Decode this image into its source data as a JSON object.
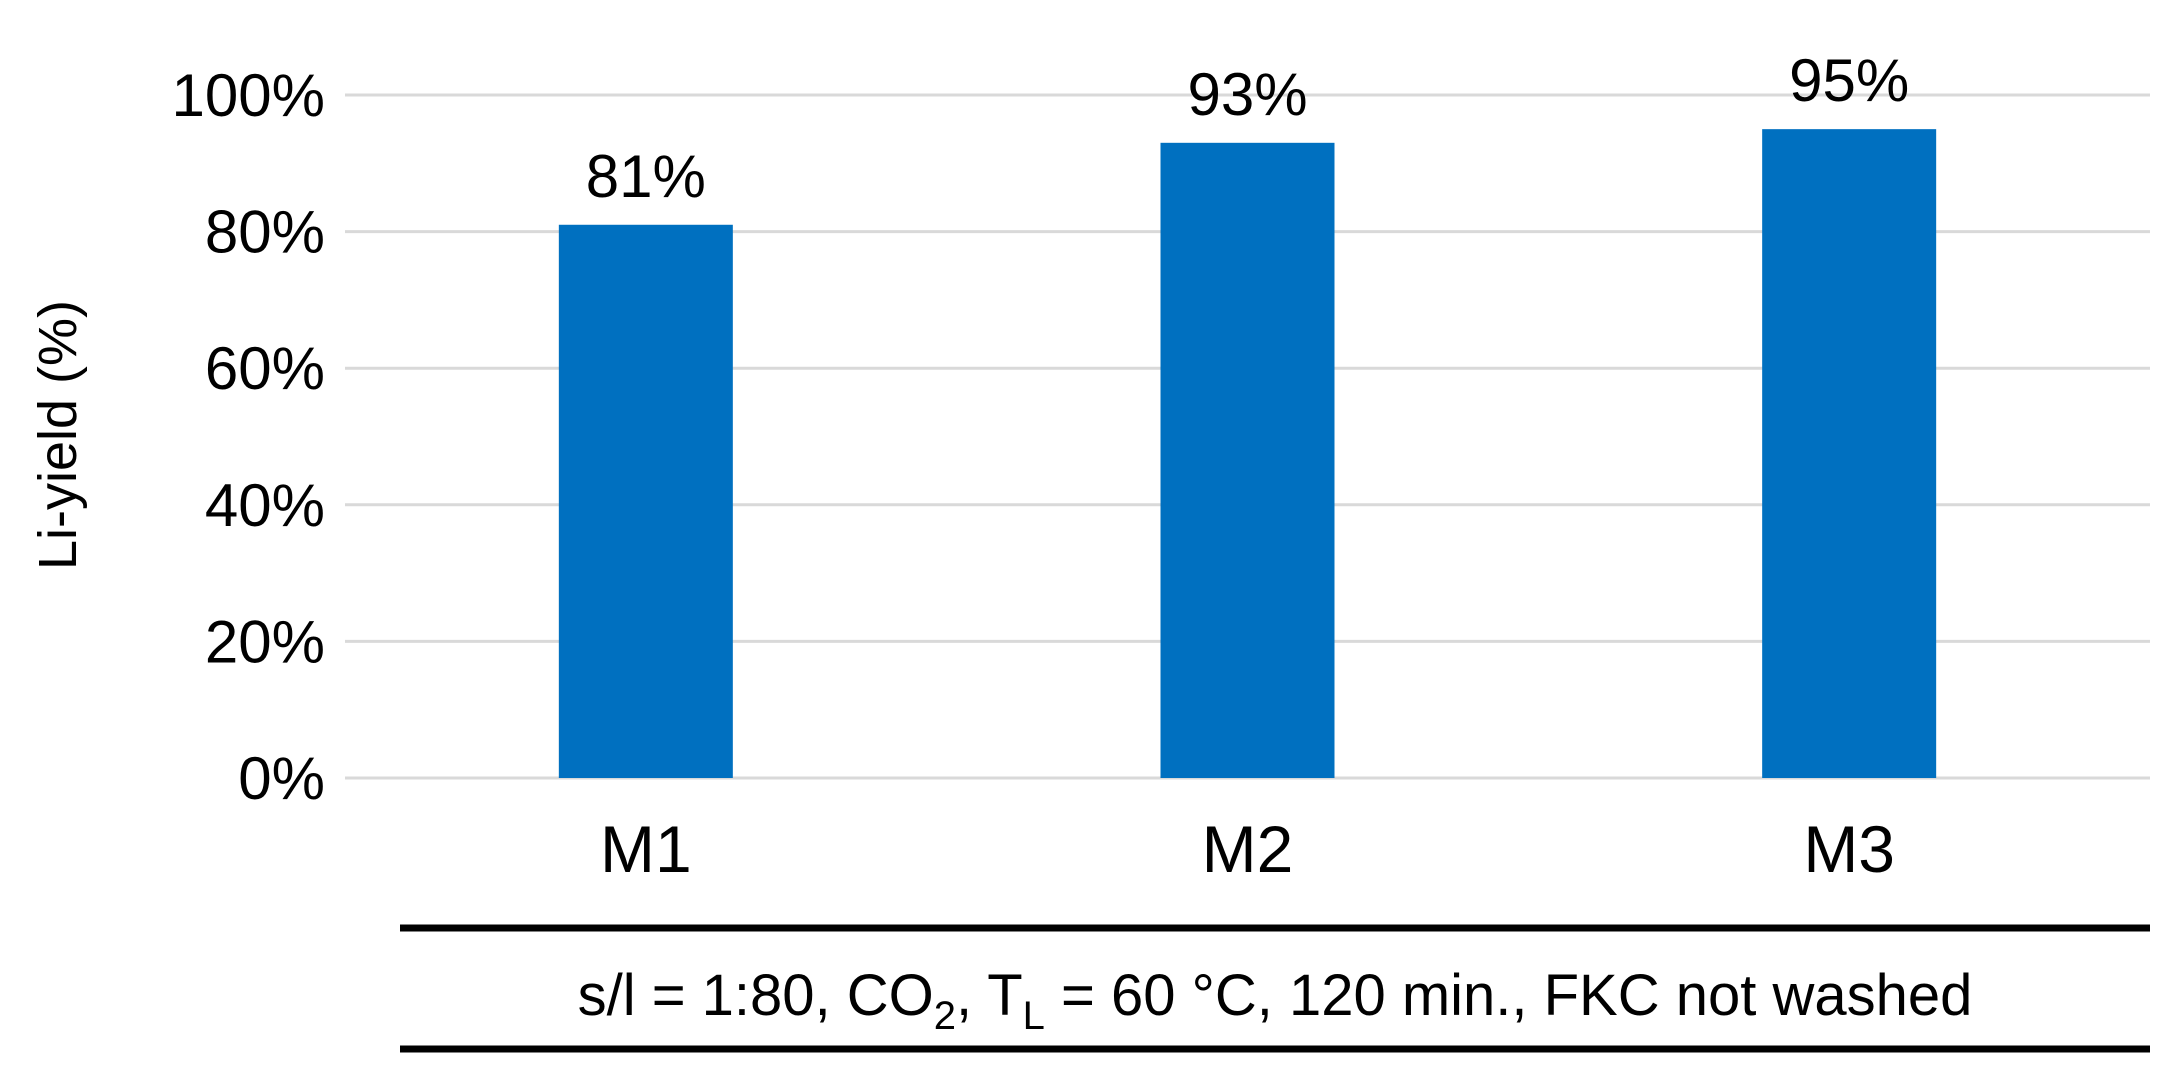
{
  "chart_data": {
    "type": "bar",
    "categories": [
      "M1",
      "M2",
      "M3"
    ],
    "values": [
      81,
      93,
      95
    ],
    "data_labels": [
      "81%",
      "93%",
      "95%"
    ],
    "ylabel": "Li-yield (%)",
    "xlabel": "",
    "ylim": [
      0,
      100
    ],
    "yticks": [
      0,
      20,
      40,
      60,
      80,
      100
    ],
    "ytick_labels": [
      "0%",
      "20%",
      "40%",
      "60%",
      "80%",
      "100%"
    ],
    "grid": true,
    "legend": "none",
    "bar_color": "#0070C0",
    "grid_color": "#D9D9D9"
  },
  "conditions": {
    "part1": "s/l = 1:80, CO",
    "sub1": "2",
    "part2": ", T",
    "sub2": "L",
    "part3": " = 60 °C, 120 min., FKC not washed"
  }
}
